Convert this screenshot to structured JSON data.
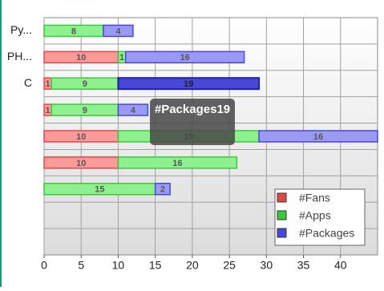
{
  "chart_data": {
    "type": "stacked-bar-horizontal",
    "categories": [
      "Py...",
      "PH...",
      "C",
      null,
      null,
      null,
      null,
      null,
      null
    ],
    "series": [
      {
        "name": "#Fans",
        "color": "#ff9a9a",
        "stroke": "#e04848",
        "values": [
          null,
          10,
          1,
          1,
          10,
          10,
          null,
          null,
          null
        ]
      },
      {
        "name": "#Apps",
        "color": "#8ff08f",
        "stroke": "#3cc83c",
        "values": [
          8,
          1,
          9,
          9,
          19,
          16,
          15,
          null,
          null
        ]
      },
      {
        "name": "#Packages",
        "color": "#9a9af5",
        "stroke": "#4848d8",
        "values": [
          4,
          16,
          19,
          4,
          16,
          null,
          2,
          null,
          null
        ]
      }
    ],
    "xlim": [
      0,
      45
    ],
    "xticks": [
      0,
      5,
      10,
      15,
      20,
      25,
      30,
      35,
      40
    ],
    "grid": true,
    "legend": "bottom-right",
    "tooltip": {
      "series": 2,
      "index": 2
    }
  }
}
